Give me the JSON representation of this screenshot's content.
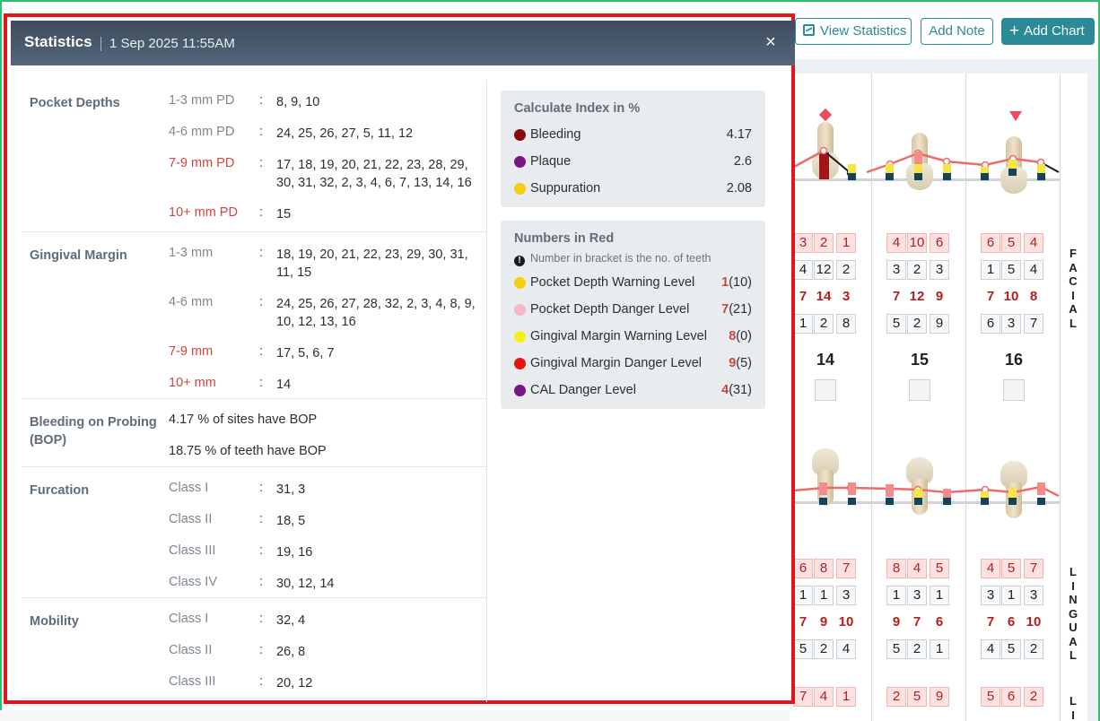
{
  "toolbar": {
    "view_statistics": "View Statistics",
    "add_note": "Add Note",
    "add_chart": "Add Chart"
  },
  "chart": {
    "tooth_numbers": [
      "14",
      "15",
      "16"
    ],
    "facial_label": "FACIAL",
    "lingual_label": "LINGUAL",
    "lingual_label_partial": "LI",
    "upper_rows": [
      [
        "3",
        "2",
        "1",
        "4",
        "10",
        "6",
        "6",
        "5",
        "4"
      ],
      [
        "4",
        "12",
        "2",
        "3",
        "2",
        "3",
        "1",
        "5",
        "4"
      ],
      [
        "7",
        "14",
        "3",
        "7",
        "12",
        "9",
        "7",
        "10",
        "8"
      ],
      [
        "1",
        "2",
        "8",
        "5",
        "2",
        "9",
        "6",
        "3",
        "7"
      ]
    ],
    "lower_rows": [
      [
        "6",
        "8",
        "7",
        "8",
        "4",
        "5",
        "4",
        "5",
        "7"
      ],
      [
        "1",
        "1",
        "3",
        "1",
        "3",
        "1",
        "3",
        "1",
        "3"
      ],
      [
        "7",
        "9",
        "10",
        "9",
        "7",
        "6",
        "7",
        "6",
        "10"
      ],
      [
        "5",
        "2",
        "4",
        "5",
        "2",
        "1",
        "4",
        "5",
        "2"
      ]
    ],
    "bottom_row": [
      "7",
      "4",
      "1",
      "2",
      "5",
      "9",
      "5",
      "6",
      "2"
    ]
  },
  "modal": {
    "title": "Statistics",
    "datetime": "1 Sep 2025 11:55AM",
    "close_icon": "×",
    "pocket_depths": {
      "title": "Pocket Depths",
      "rows": [
        {
          "label": "1-3 mm PD",
          "value": "8, 9, 10"
        },
        {
          "label": "4-6 mm PD",
          "value": "24, 25, 26, 27, 5, 11, 12"
        },
        {
          "label": "7-9 mm PD",
          "value": "17, 18, 19, 20, 21, 22, 23, 28, 29, 30, 31, 32, 2, 3, 4, 6, 7, 13, 14, 16"
        },
        {
          "label": "10+ mm PD",
          "value": "15"
        }
      ]
    },
    "gingival_margin": {
      "title": "Gingival Margin",
      "rows": [
        {
          "label": "1-3 mm",
          "value": "18, 19, 20, 21, 22, 23, 29, 30, 31, 11, 15"
        },
        {
          "label": "4-6 mm",
          "value": "24, 25, 26, 27, 28, 32, 2, 3, 4, 8, 9, 10, 12, 13, 16"
        },
        {
          "label": "7-9 mm",
          "value": "17, 5, 6, 7"
        },
        {
          "label": "10+ mm",
          "value": "14"
        }
      ]
    },
    "bop": {
      "title": "Bleeding on Probing (BOP)",
      "sites": "4.17 % of sites have BOP",
      "teeth": "18.75 % of teeth have BOP"
    },
    "furcation": {
      "title": "Furcation",
      "rows": [
        {
          "label": "Class I",
          "value": "31, 3"
        },
        {
          "label": "Class II",
          "value": "18, 5"
        },
        {
          "label": "Class III",
          "value": "19, 16"
        },
        {
          "label": "Class IV",
          "value": "30, 12, 14"
        }
      ]
    },
    "mobility": {
      "title": "Mobility",
      "rows": [
        {
          "label": "Class I",
          "value": "32, 4"
        },
        {
          "label": "Class II",
          "value": "26, 8"
        },
        {
          "label": "Class III",
          "value": "20, 12"
        }
      ]
    },
    "colon": ":",
    "index_box": {
      "title": "Calculate Index in %",
      "items": [
        {
          "label": "Bleeding",
          "value": "4.17",
          "color": "#8b0a0a"
        },
        {
          "label": "Plaque",
          "value": "2.6",
          "color": "#7a1485"
        },
        {
          "label": "Suppuration",
          "value": "2.08",
          "color": "#f3cf0f"
        }
      ]
    },
    "red_box": {
      "title": "Numbers in Red",
      "note_icon": "!",
      "note": "Number in bracket is the no. of teeth",
      "items": [
        {
          "label": "Pocket Depth Warning Level",
          "count": "1",
          "teeth": "(10)",
          "color": "#f3cf0f"
        },
        {
          "label": "Pocket Depth Danger Level",
          "count": "7",
          "teeth": "(21)",
          "color": "#f6b9c4"
        },
        {
          "label": "Gingival Margin Warning Level",
          "count": "8",
          "teeth": "(0)",
          "color": "#f5f01c"
        },
        {
          "label": "Gingival Margin Danger Level",
          "count": "9",
          "teeth": "(5)",
          "color": "#e8150f"
        },
        {
          "label": "CAL Danger Level",
          "count": "4",
          "teeth": "(31)",
          "color": "#7a1485"
        }
      ]
    }
  }
}
